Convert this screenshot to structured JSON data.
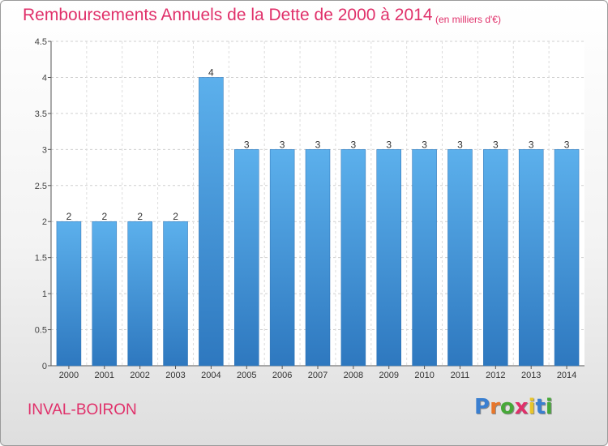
{
  "chart_data": {
    "type": "bar",
    "title": "Remboursements Annuels de la Dette de 2000 à 2014",
    "subtitle": "(en milliers d'€)",
    "categories": [
      "2000",
      "2001",
      "2002",
      "2003",
      "2004",
      "2005",
      "2006",
      "2007",
      "2008",
      "2009",
      "2010",
      "2011",
      "2012",
      "2013",
      "2014"
    ],
    "values": [
      2,
      2,
      2,
      2,
      4,
      3,
      3,
      3,
      3,
      3,
      3,
      3,
      3,
      3,
      3
    ],
    "data_labels": [
      "2",
      "2",
      "2",
      "2",
      "4",
      "3",
      "3",
      "3",
      "3",
      "3",
      "3",
      "3",
      "3",
      "3",
      "3"
    ],
    "yticks": [
      0,
      0.5,
      1,
      1.5,
      2,
      2.5,
      3,
      3.5,
      4,
      4.5
    ],
    "ytick_labels": [
      "0",
      "0.5",
      "1",
      "1.5",
      "2",
      "2.5",
      "3",
      "3.5",
      "4",
      "4.5"
    ],
    "ylim": [
      0,
      4.5
    ],
    "xlabel": "",
    "ylabel": "",
    "grid": true,
    "bar_color": "#4a9fdf"
  },
  "footer": {
    "commune": "INVAL-BOIRON",
    "logo": {
      "letters": [
        "P",
        "r",
        "o",
        "x",
        "i",
        "t",
        "i"
      ],
      "colors": [
        "#3a7fd0",
        "#e8762a",
        "#46a838",
        "#e0306a",
        "#e8c52a",
        "#3a7fd0",
        "#46a838"
      ]
    }
  }
}
